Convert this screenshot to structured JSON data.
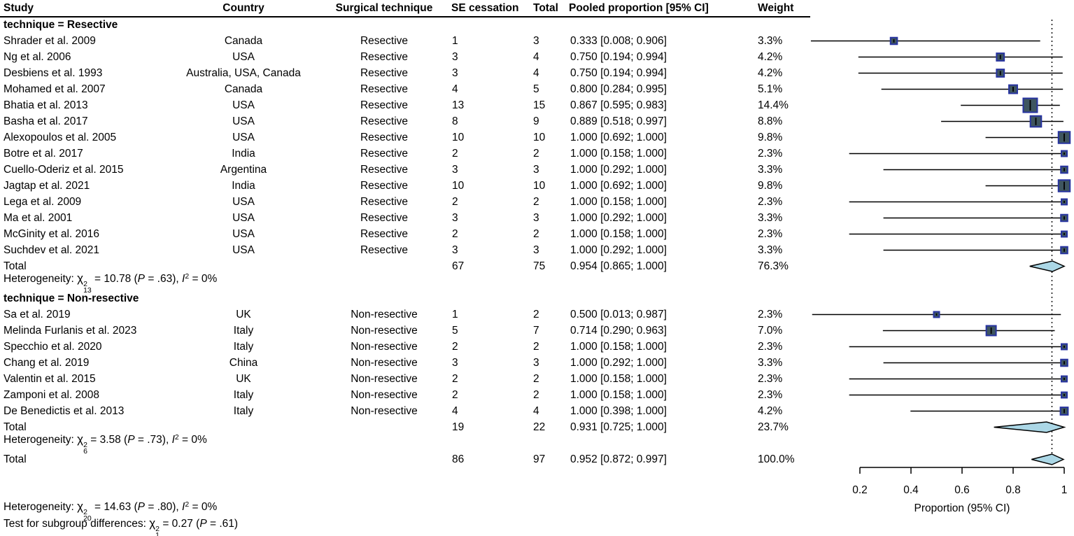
{
  "chart_data": {
    "type": "forest",
    "columns": {
      "study": "Study",
      "country": "Country",
      "technique": "Surgical technique",
      "se_cessation": "SE cessation",
      "total": "Total",
      "pooled": "Pooled proportion [95% CI]",
      "weight": "Weight"
    },
    "axis": {
      "label": "Proportion (95% CI)",
      "min": 0.2,
      "max": 1,
      "ticks": [
        0.2,
        0.4,
        0.6,
        0.8,
        1
      ],
      "tick_labels": [
        "0.2",
        "0.4",
        "0.6",
        "0.8",
        "1"
      ]
    },
    "reference_line": 0.952,
    "colors": {
      "square_fill": "#3e5560",
      "square_border": "#2733a0",
      "diamond_fill": "#abd7e6",
      "diamond_border": "#000000",
      "line": "#000000"
    },
    "groups": [
      {
        "label": "technique = Resective",
        "studies": [
          {
            "study": "Shrader et al. 2009",
            "country": "Canada",
            "technique": "Resective",
            "events": "1",
            "total": "3",
            "est": 0.333,
            "lo": 0.008,
            "hi": 0.906,
            "ci_text": "0.333 [0.008; 0.906]",
            "weight": 3.3,
            "weight_text": "3.3%"
          },
          {
            "study": "Ng et al. 2006",
            "country": "USA",
            "technique": "Resective",
            "events": "3",
            "total": "4",
            "est": 0.75,
            "lo": 0.194,
            "hi": 0.994,
            "ci_text": "0.750 [0.194; 0.994]",
            "weight": 4.2,
            "weight_text": "4.2%"
          },
          {
            "study": "Desbiens et al. 1993",
            "country": "Australia, USA, Canada",
            "technique": "Resective",
            "events": "3",
            "total": "4",
            "est": 0.75,
            "lo": 0.194,
            "hi": 0.994,
            "ci_text": "0.750 [0.194; 0.994]",
            "weight": 4.2,
            "weight_text": "4.2%"
          },
          {
            "study": "Mohamed et al. 2007",
            "country": "Canada",
            "technique": "Resective",
            "events": "4",
            "total": "5",
            "est": 0.8,
            "lo": 0.284,
            "hi": 0.995,
            "ci_text": "0.800 [0.284; 0.995]",
            "weight": 5.1,
            "weight_text": "5.1%"
          },
          {
            "study": "Bhatia et al. 2013",
            "country": "USA",
            "technique": "Resective",
            "events": "13",
            "total": "15",
            "est": 0.867,
            "lo": 0.595,
            "hi": 0.983,
            "ci_text": "0.867 [0.595; 0.983]",
            "weight": 14.4,
            "weight_text": "14.4%"
          },
          {
            "study": "Basha et al. 2017",
            "country": "USA",
            "technique": "Resective",
            "events": "8",
            "total": "9",
            "est": 0.889,
            "lo": 0.518,
            "hi": 0.997,
            "ci_text": "0.889 [0.518; 0.997]",
            "weight": 8.8,
            "weight_text": "8.8%"
          },
          {
            "study": "Alexopoulos et al. 2005",
            "country": "USA",
            "technique": "Resective",
            "events": "10",
            "total": "10",
            "est": 1.0,
            "lo": 0.692,
            "hi": 1.0,
            "ci_text": "1.000 [0.692; 1.000]",
            "weight": 9.8,
            "weight_text": "9.8%"
          },
          {
            "study": "Botre et al. 2017",
            "country": "India",
            "technique": "Resective",
            "events": "2",
            "total": "2",
            "est": 1.0,
            "lo": 0.158,
            "hi": 1.0,
            "ci_text": "1.000 [0.158; 1.000]",
            "weight": 2.3,
            "weight_text": "2.3%"
          },
          {
            "study": "Cuello-Oderiz et al. 2015",
            "country": "Argentina",
            "technique": "Resective",
            "events": "3",
            "total": "3",
            "est": 1.0,
            "lo": 0.292,
            "hi": 1.0,
            "ci_text": "1.000 [0.292; 1.000]",
            "weight": 3.3,
            "weight_text": "3.3%"
          },
          {
            "study": "Jagtap et al. 2021",
            "country": "India",
            "technique": "Resective",
            "events": "10",
            "total": "10",
            "est": 1.0,
            "lo": 0.692,
            "hi": 1.0,
            "ci_text": "1.000 [0.692; 1.000]",
            "weight": 9.8,
            "weight_text": "9.8%"
          },
          {
            "study": "Lega et al. 2009",
            "country": "USA",
            "technique": "Resective",
            "events": "2",
            "total": "2",
            "est": 1.0,
            "lo": 0.158,
            "hi": 1.0,
            "ci_text": "1.000 [0.158; 1.000]",
            "weight": 2.3,
            "weight_text": "2.3%"
          },
          {
            "study": "Ma et al. 2001",
            "country": "USA",
            "technique": "Resective",
            "events": "3",
            "total": "3",
            "est": 1.0,
            "lo": 0.292,
            "hi": 1.0,
            "ci_text": "1.000 [0.292; 1.000]",
            "weight": 3.3,
            "weight_text": "3.3%"
          },
          {
            "study": "McGinity et al. 2016",
            "country": "USA",
            "technique": "Resective",
            "events": "2",
            "total": "2",
            "est": 1.0,
            "lo": 0.158,
            "hi": 1.0,
            "ci_text": "1.000 [0.158; 1.000]",
            "weight": 2.3,
            "weight_text": "2.3%"
          },
          {
            "study": "Suchdev et al. 2021",
            "country": "USA",
            "technique": "Resective",
            "events": "3",
            "total": "3",
            "est": 1.0,
            "lo": 0.292,
            "hi": 1.0,
            "ci_text": "1.000 [0.292; 1.000]",
            "weight": 3.3,
            "weight_text": "3.3%"
          }
        ],
        "total": {
          "label": "Total",
          "events": "67",
          "total": "75",
          "est": 0.954,
          "lo": 0.865,
          "hi": 1.0,
          "ci_text": "0.954 [0.865; 1.000]",
          "weight_text": "76.3%"
        },
        "heterogeneity": {
          "df": "13",
          "chi2": "10.78",
          "p": ".63",
          "i2": "0%"
        }
      },
      {
        "label": "technique = Non-resective",
        "studies": [
          {
            "study": "Sa et al. 2019",
            "country": "UK",
            "technique": "Non-resective",
            "events": "1",
            "total": "2",
            "est": 0.5,
            "lo": 0.013,
            "hi": 0.987,
            "ci_text": "0.500 [0.013; 0.987]",
            "weight": 2.3,
            "weight_text": "2.3%"
          },
          {
            "study": "Melinda Furlanis et al. 2023",
            "country": "Italy",
            "technique": "Non-resective",
            "events": "5",
            "total": "7",
            "est": 0.714,
            "lo": 0.29,
            "hi": 0.963,
            "ci_text": "0.714 [0.290; 0.963]",
            "weight": 7.0,
            "weight_text": "7.0%"
          },
          {
            "study": "Specchio et al. 2020",
            "country": "Italy",
            "technique": "Non-resective",
            "events": "2",
            "total": "2",
            "est": 1.0,
            "lo": 0.158,
            "hi": 1.0,
            "ci_text": "1.000 [0.158; 1.000]",
            "weight": 2.3,
            "weight_text": "2.3%"
          },
          {
            "study": "Chang et al. 2019",
            "country": "China",
            "technique": "Non-resective",
            "events": "3",
            "total": "3",
            "est": 1.0,
            "lo": 0.292,
            "hi": 1.0,
            "ci_text": "1.000 [0.292; 1.000]",
            "weight": 3.3,
            "weight_text": "3.3%"
          },
          {
            "study": "Valentin et al. 2015",
            "country": "UK",
            "technique": "Non-resective",
            "events": "2",
            "total": "2",
            "est": 1.0,
            "lo": 0.158,
            "hi": 1.0,
            "ci_text": "1.000 [0.158; 1.000]",
            "weight": 2.3,
            "weight_text": "2.3%"
          },
          {
            "study": "Zamponi et al. 2008",
            "country": "Italy",
            "technique": "Non-resective",
            "events": "2",
            "total": "2",
            "est": 1.0,
            "lo": 0.158,
            "hi": 1.0,
            "ci_text": "1.000 [0.158; 1.000]",
            "weight": 2.3,
            "weight_text": "2.3%"
          },
          {
            "study": "De Benedictis et al. 2013",
            "country": "Italy",
            "technique": "Non-resective",
            "events": "4",
            "total": "4",
            "est": 1.0,
            "lo": 0.398,
            "hi": 1.0,
            "ci_text": "1.000 [0.398; 1.000]",
            "weight": 4.2,
            "weight_text": "4.2%"
          }
        ],
        "total": {
          "label": "Total",
          "events": "19",
          "total": "22",
          "est": 0.931,
          "lo": 0.725,
          "hi": 1.0,
          "ci_text": "0.931 [0.725; 1.000]",
          "weight_text": "23.7%"
        },
        "heterogeneity": {
          "df": "6",
          "chi2": "3.58",
          "p": ".73",
          "i2": "0%"
        }
      }
    ],
    "overall": {
      "label": "Total",
      "events": "86",
      "total": "97",
      "est": 0.952,
      "lo": 0.872,
      "hi": 0.997,
      "ci_text": "0.952 [0.872; 0.997]",
      "weight_text": "100.0%"
    },
    "footer": {
      "heterogeneity": {
        "prefix": "Heterogeneity: ",
        "df": "20",
        "chi2": "14.63",
        "p": ".80",
        "i2": "0%"
      },
      "subgroup_test": {
        "prefix": "Test for subgroup differences: ",
        "df": "1",
        "chi2": "0.27",
        "p": ".61"
      }
    }
  }
}
